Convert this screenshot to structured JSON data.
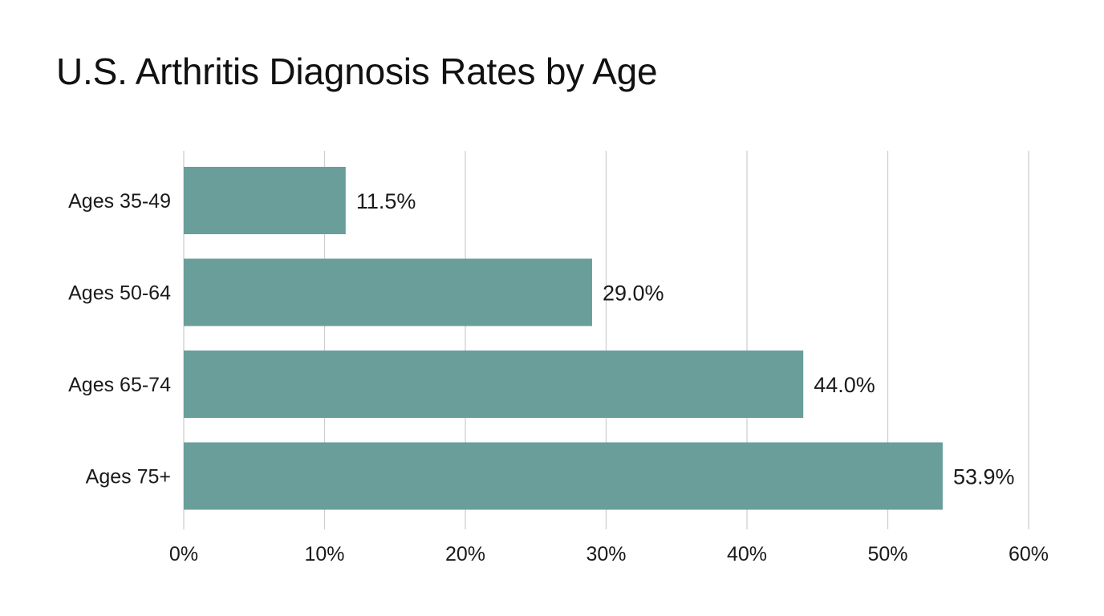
{
  "chart_data": {
    "type": "bar",
    "orientation": "horizontal",
    "title": "U.S. Arthritis Diagnosis Rates by Age",
    "categories": [
      "Ages 35-49",
      "Ages 50-64",
      "Ages 65-74",
      "Ages 75+"
    ],
    "values": [
      11.5,
      29.0,
      44.0,
      53.9
    ],
    "value_labels": [
      "11.5%",
      "29.0%",
      "44.0%",
      "53.9%"
    ],
    "xlim": [
      0,
      60
    ],
    "x_ticks": [
      0,
      10,
      20,
      30,
      40,
      50,
      60
    ],
    "x_tick_labels": [
      "0%",
      "10%",
      "20%",
      "30%",
      "40%",
      "50%",
      "60%"
    ],
    "xlabel": "",
    "ylabel": "",
    "grid": "vertical",
    "legend": "none",
    "bar_color": "#6a9e9b"
  }
}
